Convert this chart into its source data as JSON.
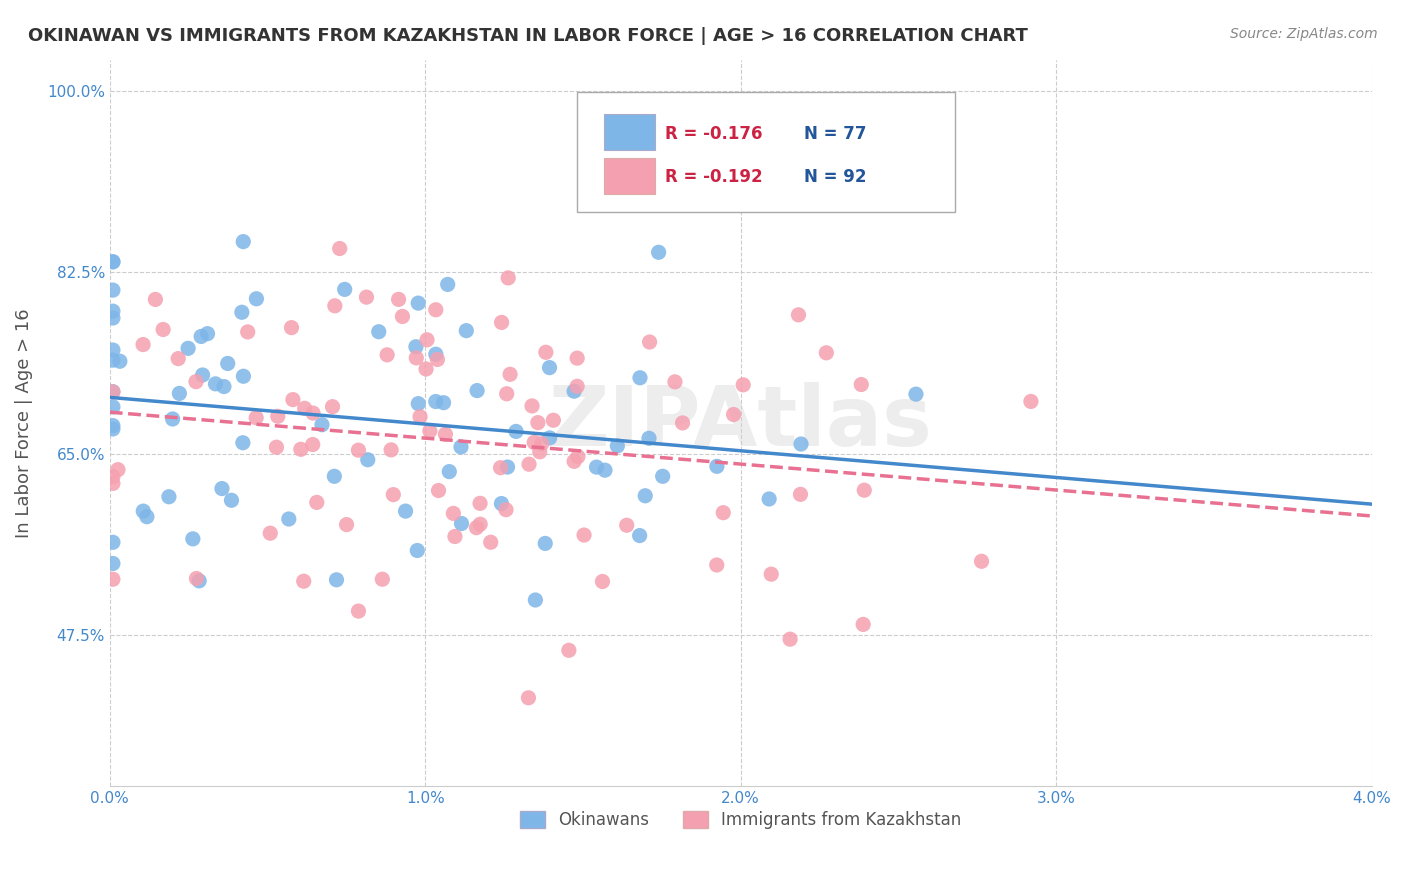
{
  "title": "OKINAWAN VS IMMIGRANTS FROM KAZAKHSTAN IN LABOR FORCE | AGE > 16 CORRELATION CHART",
  "source": "Source: ZipAtlas.com",
  "xlabel": "",
  "ylabel": "In Labor Force | Age > 16",
  "xlim": [
    0.0,
    0.04
  ],
  "ylim": [
    0.33,
    1.03
  ],
  "yticks": [
    0.475,
    0.65,
    0.825,
    1.0
  ],
  "ytick_labels": [
    "47.5%",
    "65.0%",
    "82.5%",
    "100.0%"
  ],
  "xticks": [
    0.0,
    0.01,
    0.02,
    0.03,
    0.04
  ],
  "xtick_labels": [
    "0.0%",
    "1.0%",
    "2.0%",
    "3.0%",
    "4.0%"
  ],
  "series1_name": "Okinawans",
  "series1_color": "#7EB6E8",
  "series1_R": -0.176,
  "series1_N": 77,
  "series2_name": "Immigrants from Kazakhstan",
  "series2_color": "#F5A0B0",
  "series2_R": -0.192,
  "series2_N": 92,
  "legend_R1": "R = -0.176",
  "legend_N1": "N = 77",
  "legend_R2": "R = -0.192",
  "legend_N2": "N = 92",
  "watermark": "ZIPAtlas",
  "background_color": "#ffffff",
  "grid_color": "#cccccc",
  "title_color": "#333333",
  "axis_label_color": "#555555",
  "tick_label_color": "#4488cc",
  "source_color": "#888888"
}
